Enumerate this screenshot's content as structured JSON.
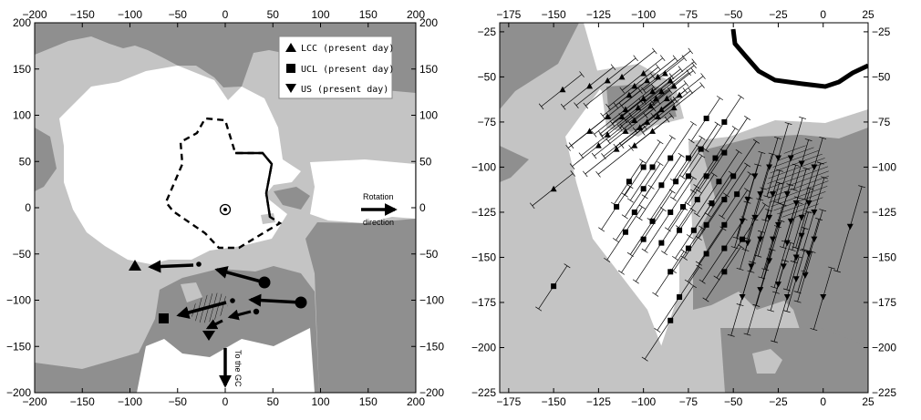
{
  "colors": {
    "dark": "#8f8f8f",
    "light": "#c4c4c4",
    "white": "#ffffff",
    "ink": "#000000"
  },
  "chart_data": [
    {
      "type": "scatter",
      "xlim": [
        -200,
        200
      ],
      "ylim": [
        -200,
        200
      ],
      "xticks": [
        "-200",
        "-150",
        "-100",
        "-50",
        "0",
        "50",
        "100",
        "150",
        "200"
      ],
      "yticks": [
        "-200",
        "-150",
        "-100",
        "-50",
        "0",
        "50",
        "100",
        "150",
        "200"
      ],
      "legend_position": "top-right",
      "legend": [
        {
          "marker": "triangle-up",
          "label": "LCC (present day)"
        },
        {
          "marker": "square",
          "label": "UCL (present day)"
        },
        {
          "marker": "triangle-down",
          "label": "US (present day)"
        }
      ],
      "sun": {
        "x": 0,
        "y": 0
      },
      "present_positions": [
        {
          "group": "LCC",
          "marker": "triangle-up",
          "x": -102,
          "y": -62
        },
        {
          "group": "UCL",
          "marker": "square",
          "x": -68,
          "y": -118
        },
        {
          "group": "US",
          "marker": "triangle-down",
          "x": -22,
          "y": -136
        }
      ],
      "trajectories": [
        {
          "from": [
            43,
            -78
          ],
          "mid": [
            -30,
            -58
          ],
          "to": [
            -102,
            -62
          ]
        },
        {
          "from": [
            82,
            -102
          ],
          "mid": [
            8,
            -96
          ],
          "to": [
            -68,
            -118
          ]
        },
        {
          "from": [
            33,
            -112
          ],
          "mid": [
            -15,
            -125
          ],
          "to": [
            -22,
            -136
          ]
        }
      ],
      "annotations": [
        {
          "text_lines": [
            "Rotation",
            "direction"
          ],
          "arrow": "right",
          "x": 172,
          "y": 0
        },
        {
          "text_lines": [
            "To the GC"
          ],
          "arrow": "down",
          "x": 0,
          "y": -160
        }
      ],
      "contour_solid": [
        [
          48,
          -8
        ],
        [
          40,
          15
        ],
        [
          48,
          48
        ],
        [
          38,
          58
        ],
        [
          -20,
          58
        ],
        [
          -35,
          100
        ],
        [
          -60,
          102
        ],
        [
          -68,
          82
        ],
        [
          -90,
          62
        ],
        [
          -85,
          30
        ],
        [
          -105,
          0
        ],
        [
          -95,
          -5
        ],
        [
          -45,
          -35
        ],
        [
          -25,
          -50
        ],
        [
          20,
          -52
        ],
        [
          58,
          -35
        ],
        [
          70,
          -5
        ],
        [
          48,
          -8
        ]
      ]
    },
    {
      "type": "scatter",
      "xlim": [
        -180,
        25
      ],
      "ylim": [
        -225,
        -20
      ],
      "xticks": [
        "-175",
        "-150",
        "-125",
        "-100",
        "-75",
        "-50",
        "-25",
        "0",
        "25"
      ],
      "yticks": [
        "-225",
        "-200",
        "-175",
        "-150",
        "-125",
        "-100",
        "-75",
        "-50",
        "-25"
      ],
      "series": [
        {
          "group": "LCC",
          "marker": "triangle-up",
          "points": [
            [
              -145,
              -57
            ],
            [
              -130,
              -55
            ],
            [
              -120,
              -52
            ],
            [
              -112,
              -50
            ],
            [
              -100,
              -48
            ],
            [
              -105,
              -55
            ],
            [
              -98,
              -52
            ],
            [
              -92,
              -50
            ],
            [
              -88,
              -48
            ],
            [
              -85,
              -52
            ],
            [
              -95,
              -58
            ],
            [
              -90,
              -58
            ],
            [
              -83,
              -55
            ],
            [
              -108,
              -60
            ],
            [
              -100,
              -62
            ],
            [
              -93,
              -62
            ],
            [
              -87,
              -62
            ],
            [
              -80,
              -60
            ],
            [
              -110,
              -68
            ],
            [
              -103,
              -67
            ],
            [
              -96,
              -66
            ],
            [
              -90,
              -68
            ],
            [
              -83,
              -67
            ],
            [
              -120,
              -72
            ],
            [
              -112,
              -72
            ],
            [
              -105,
              -74
            ],
            [
              -98,
              -75
            ],
            [
              -92,
              -72
            ],
            [
              -130,
              -80
            ],
            [
              -120,
              -82
            ],
            [
              -110,
              -80
            ],
            [
              -102,
              -78
            ],
            [
              -95,
              -80
            ],
            [
              -125,
              -88
            ],
            [
              -115,
              -90
            ],
            [
              -105,
              -88
            ],
            [
              -150,
              -112
            ]
          ]
        },
        {
          "group": "UCL",
          "marker": "square",
          "points": [
            [
              -150,
              -166
            ],
            [
              -100,
              -100
            ],
            [
              -95,
              -100
            ],
            [
              -85,
              -95
            ],
            [
              -75,
              -95
            ],
            [
              -68,
              -90
            ],
            [
              -60,
              -95
            ],
            [
              -55,
              -92
            ],
            [
              -108,
              -108
            ],
            [
              -100,
              -112
            ],
            [
              -90,
              -110
            ],
            [
              -82,
              -108
            ],
            [
              -75,
              -105
            ],
            [
              -65,
              -105
            ],
            [
              -58,
              -108
            ],
            [
              -50,
              -105
            ],
            [
              -115,
              -122
            ],
            [
              -105,
              -125
            ],
            [
              -95,
              -130
            ],
            [
              -85,
              -125
            ],
            [
              -78,
              -122
            ],
            [
              -70,
              -118
            ],
            [
              -62,
              -120
            ],
            [
              -55,
              -118
            ],
            [
              -48,
              -115
            ],
            [
              -110,
              -136
            ],
            [
              -100,
              -140
            ],
            [
              -90,
              -142
            ],
            [
              -80,
              -135
            ],
            [
              -72,
              -135
            ],
            [
              -65,
              -132
            ],
            [
              -55,
              -132
            ],
            [
              -75,
              -145
            ],
            [
              -65,
              -148
            ],
            [
              -55,
              -145
            ],
            [
              -45,
              -140
            ],
            [
              -85,
              -158
            ],
            [
              -55,
              -158
            ],
            [
              -80,
              -172
            ],
            [
              -85,
              -185
            ],
            [
              -65,
              -73
            ],
            [
              -55,
              -75
            ]
          ]
        },
        {
          "group": "US",
          "marker": "triangle-down",
          "points": [
            [
              -38,
              -105
            ],
            [
              -30,
              -100
            ],
            [
              -25,
              -95
            ],
            [
              -18,
              -95
            ],
            [
              -12,
              -98
            ],
            [
              -5,
              -100
            ],
            [
              -42,
              -118
            ],
            [
              -35,
              -115
            ],
            [
              -28,
              -115
            ],
            [
              -20,
              -115
            ],
            [
              -15,
              -120
            ],
            [
              -8,
              -120
            ],
            [
              -45,
              -130
            ],
            [
              -38,
              -128
            ],
            [
              -30,
              -128
            ],
            [
              -25,
              -132
            ],
            [
              -18,
              -130
            ],
            [
              -12,
              -128
            ],
            [
              -5,
              -125
            ],
            [
              15,
              -133
            ],
            [
              -42,
              -142
            ],
            [
              -35,
              -140
            ],
            [
              -28,
              -140
            ],
            [
              -20,
              -142
            ],
            [
              -12,
              -138
            ],
            [
              -5,
              -140
            ],
            [
              -40,
              -155
            ],
            [
              -30,
              -152
            ],
            [
              -22,
              -155
            ],
            [
              -15,
              -150
            ],
            [
              -8,
              -148
            ],
            [
              -35,
              -168
            ],
            [
              -25,
              -165
            ],
            [
              -15,
              -162
            ],
            [
              -45,
              -172
            ],
            [
              -20,
              -172
            ],
            [
              -10,
              -160
            ],
            [
              0,
              -172
            ]
          ]
        }
      ]
    }
  ]
}
